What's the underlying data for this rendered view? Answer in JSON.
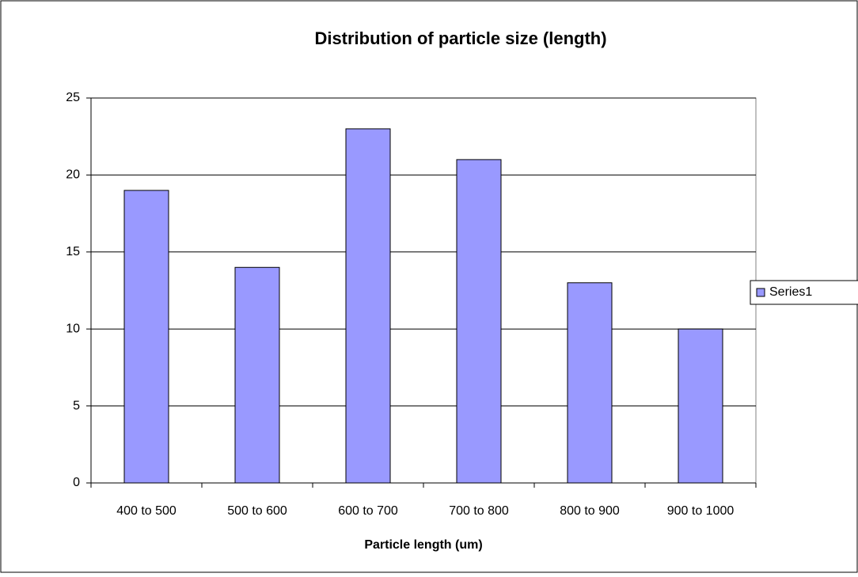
{
  "chart_data": {
    "type": "bar",
    "title": "Distribution of particle size (length)",
    "x_label": "Particle length (um)",
    "categories": [
      "400 to 500",
      "500 to 600",
      "600 to 700",
      "700 to 800",
      "800 to 900",
      "900 to 1000"
    ],
    "series": [
      {
        "name": "Series1",
        "color": "#9999ff",
        "values": [
          19,
          14,
          23,
          21,
          13,
          10
        ]
      }
    ],
    "ylim": [
      0,
      25
    ],
    "yticks": [
      0,
      5,
      10,
      15,
      20,
      25
    ],
    "grid": true,
    "legend": "right"
  }
}
